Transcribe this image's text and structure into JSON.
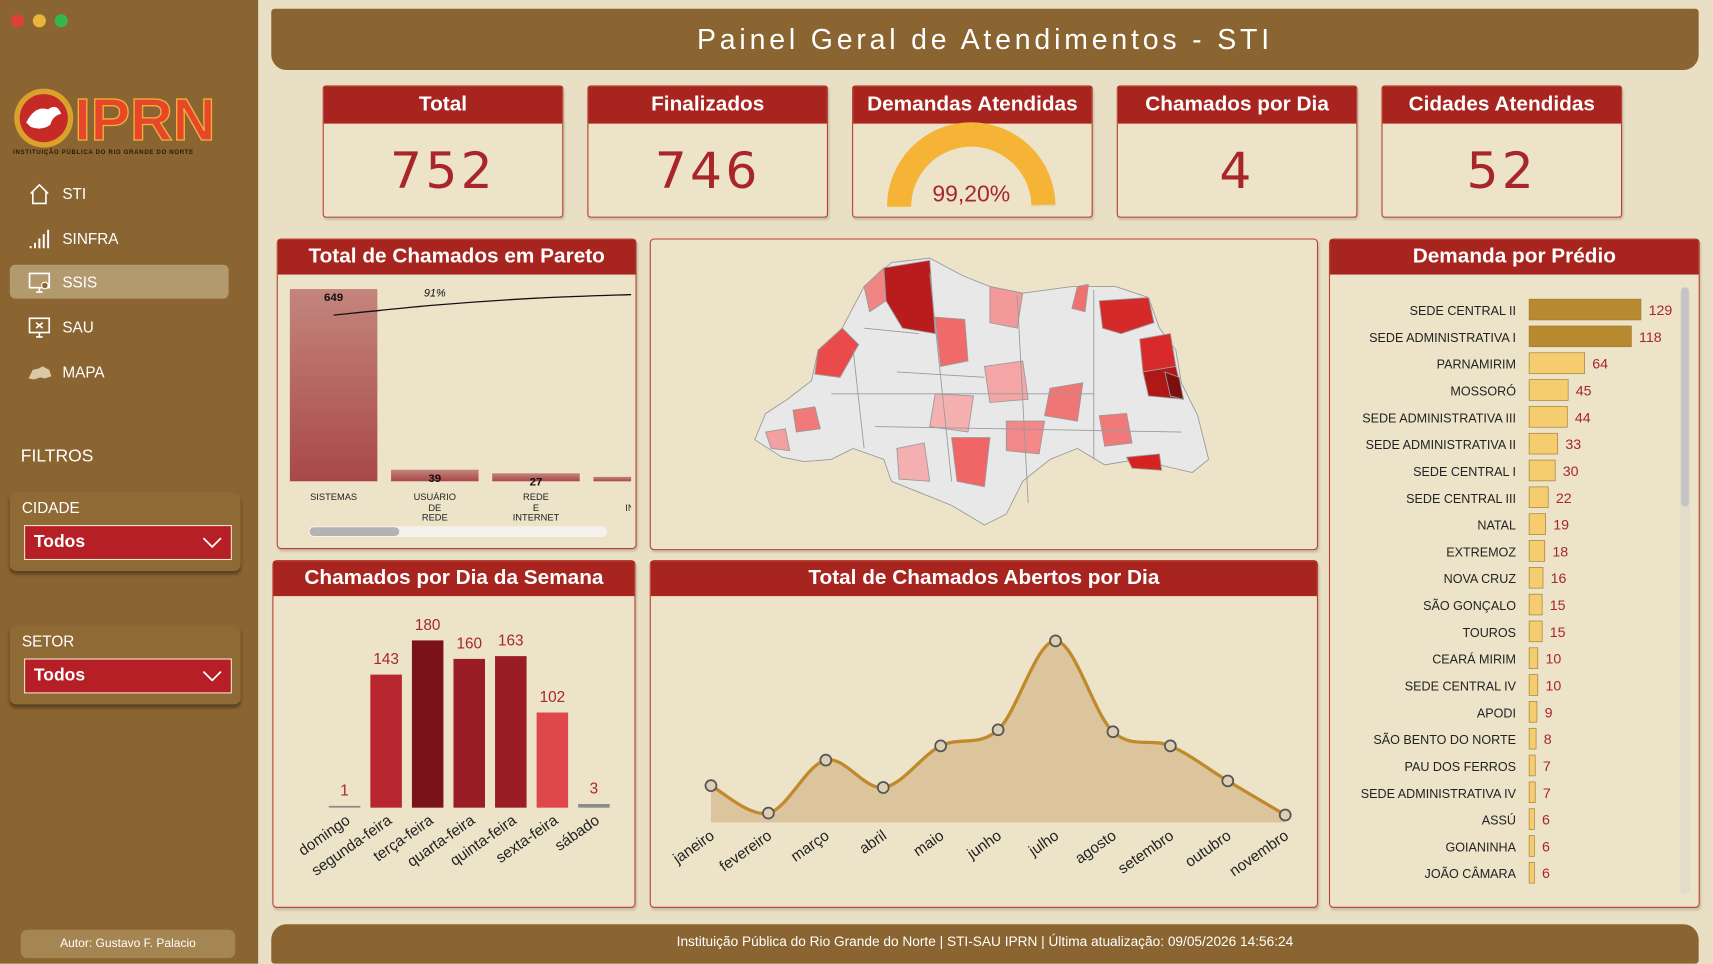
{
  "sidebar": {
    "logo": "IPRN",
    "logo_subtitle": "INSTITUIÇÃO PÚBLICA DO RIO GRANDE DO NORTE",
    "nav": [
      "STI",
      "SINFRA",
      "SSIS",
      "SAU",
      "MAPA"
    ],
    "active_nav_index": 2,
    "filters_title": "FILTROS",
    "filters": [
      {
        "label": "CIDADE",
        "value": "Todos"
      },
      {
        "label": "SETOR",
        "value": "Todos"
      }
    ],
    "author": "Autor: Gustavo F. Palacio"
  },
  "header": {
    "title": "Painel Geral de Atendimentos - STI"
  },
  "kpis": [
    {
      "title": "Total",
      "value": 752
    },
    {
      "title": "Finalizados",
      "value": 746
    },
    {
      "title": "Demandas Atendidas",
      "value": 99.2,
      "value_label": "99,20%",
      "max": 100,
      "color": "#f6b437"
    },
    {
      "title": "Chamados por Dia",
      "value": 4
    },
    {
      "title": "Cidades Atendidas",
      "value": 52
    }
  ],
  "chart_data": [
    {
      "type": "pareto",
      "title": "Total de Chamados em Pareto",
      "categories": [
        "SISTEMAS",
        "USUÁRIO DE REDE",
        "REDE E INTERNET",
        "E INSTI"
      ],
      "values": [
        649,
        39,
        27,
        15
      ],
      "value_labels": [
        "649",
        "39",
        "27",
        null
      ],
      "cumulative": [
        86.3,
        91.5,
        95.1,
        97.1
      ],
      "annotation": "91%",
      "color": "#a8474a",
      "line_color": "#111111",
      "ylim": [
        0,
        650
      ],
      "y2lim": [
        0,
        100
      ]
    },
    {
      "type": "bar",
      "title": "Chamados por Dia da Semana",
      "categories": [
        "domingo",
        "segunda-feira",
        "terça-feira",
        "quarta-feira",
        "quinta-feira",
        "sexta-feira",
        "sábado"
      ],
      "values": [
        1,
        143,
        180,
        160,
        163,
        102,
        3
      ],
      "colors": [
        "#8c8c8c",
        "#b8262f",
        "#7a1219",
        "#9a1c25",
        "#9a1c25",
        "#e0474a",
        "#8c8c8c"
      ],
      "ylim": [
        0,
        200
      ]
    },
    {
      "type": "area",
      "title": "Total de Chamados Abertos por Dia",
      "categories": [
        "janeiro",
        "fevereiro",
        "março",
        "abril",
        "maio",
        "junho",
        "julho",
        "agosto",
        "setembro",
        "outubro",
        "novembro"
      ],
      "values": [
        39,
        10,
        66,
        37,
        81,
        98,
        192,
        96,
        81,
        44,
        8
      ],
      "color": "#c08a2c",
      "fill": "#dcc59d",
      "ylim": [
        0,
        200
      ]
    },
    {
      "type": "hbar",
      "title": "Demanda por Prédio",
      "categories": [
        "SEDE CENTRAL II",
        "SEDE ADMINISTRATIVA I",
        "PARNAMIRIM",
        "MOSSORÓ",
        "SEDE ADMINISTRATIVA III",
        "SEDE ADMINISTRATIVA II",
        "SEDE CENTRAL I",
        "SEDE CENTRAL III",
        "NATAL",
        "EXTREMOZ",
        "NOVA CRUZ",
        "SÃO GONÇALO",
        "TOUROS",
        "CEARÁ MIRIM",
        "SEDE CENTRAL IV",
        "APODI",
        "SÃO BENTO DO NORTE",
        "PAU DOS FERROS",
        "SEDE ADMINISTRATIVA IV",
        "ASSÚ",
        "GOIANINHA",
        "JOÃO CÂMARA"
      ],
      "values": [
        129,
        118,
        64,
        45,
        44,
        33,
        30,
        22,
        19,
        18,
        16,
        15,
        15,
        10,
        10,
        9,
        8,
        7,
        7,
        6,
        6,
        6
      ],
      "colors": [
        "#b88a30",
        "#b88a30",
        "#f6cd6e",
        "#f6cd6e",
        "#f6cd6e",
        "#f6cd6e",
        "#f6cd6e",
        "#f6cd6e",
        "#f6cd6e",
        "#f6cd6e",
        "#f6cd6e",
        "#f6cd6e",
        "#f6cd6e",
        "#f6cd6e",
        "#f6cd6e",
        "#f6cd6e",
        "#f6cd6e",
        "#f6cd6e",
        "#f6cd6e",
        "#f6cd6e",
        "#f6cd6e",
        "#f6cd6e"
      ],
      "xlim": [
        0,
        130
      ]
    }
  ],
  "footer": "Instituição Pública do Rio Grande do Norte | STI-SAU IPRN | Última atualização: 09/05/2026 14:56:24"
}
